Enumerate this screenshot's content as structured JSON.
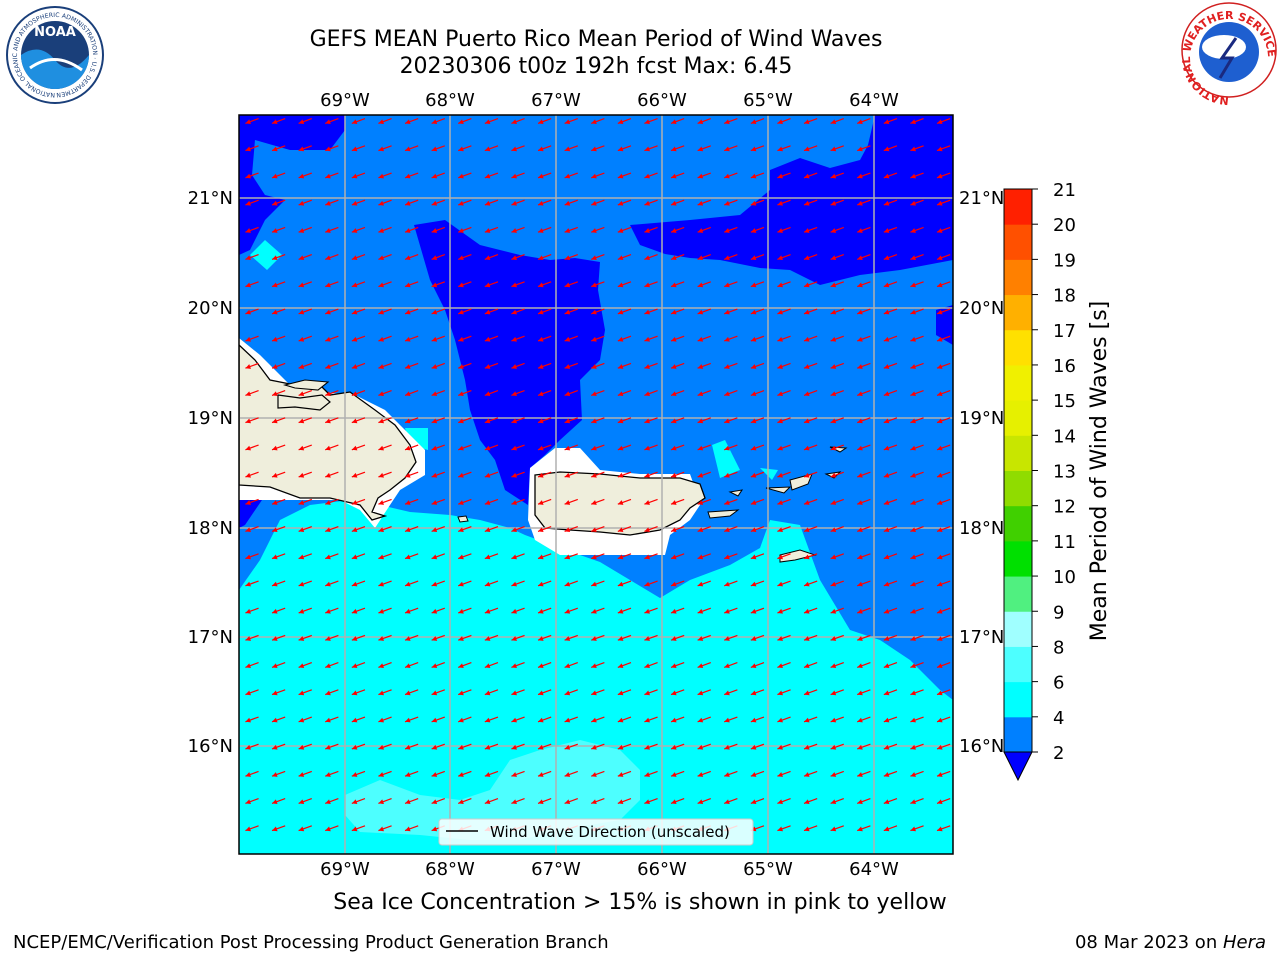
{
  "header": {
    "title_line1": "GEFS MEAN Puerto Rico Mean Period of Wind Waves",
    "title_line2": "20230306 t00z 192h fcst   Max: 6.45"
  },
  "logos": {
    "noaa_text": "NOAA",
    "noaa_ring_text": "NATIONAL OCEANIC AND ATMOSPHERIC ADMINISTRATION · U.S. DEPARTMENT OF COMMERCE",
    "nws_ring_text": "NATIONAL WEATHER SERVICE"
  },
  "map": {
    "lon_labels": [
      "69°W",
      "68°W",
      "67°W",
      "66°W",
      "65°W",
      "64°W"
    ],
    "lat_labels": [
      "21°N",
      "20°N",
      "19°N",
      "18°N",
      "17°N",
      "16°N"
    ],
    "legend_label": "Wind Wave Direction (unscaled)",
    "colors": {
      "band_2_4": "#0080ff",
      "band_lt_2": "#0000ff",
      "band_4_6": "#00ffff",
      "band_6_8": "#4dffff",
      "land": "#efeedc",
      "arrow": "#ff0000",
      "grid": "#b0b0b0"
    }
  },
  "colorbar": {
    "label": "Mean Period of Wind Waves [s]",
    "ticks": [
      "2",
      "4",
      "6",
      "8",
      "9",
      "10",
      "11",
      "12",
      "13",
      "14",
      "15",
      "16",
      "17",
      "18",
      "19",
      "20",
      "21"
    ],
    "colors": [
      "#0080ff",
      "#00ffff",
      "#4dffff",
      "#a0ffff",
      "#50f080",
      "#00e000",
      "#40d000",
      "#90dc00",
      "#c8e600",
      "#e6f000",
      "#f0f000",
      "#ffe000",
      "#ffb000",
      "#ff8000",
      "#ff5000",
      "#ff2000"
    ],
    "under_color": "#0000ff"
  },
  "subtitle": "Sea Ice Concentration > 15% is shown in pink to yellow",
  "footer": {
    "left": "NCEP/EMC/Verification Post Processing Product Generation Branch",
    "right_prefix": "08 Mar 2023 on ",
    "right_host": "Hera"
  }
}
